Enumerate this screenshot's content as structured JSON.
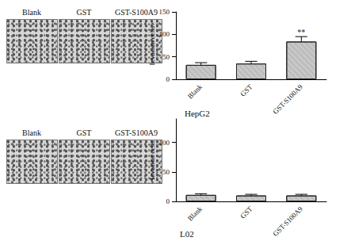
{
  "chart_data": [
    {
      "type": "bar",
      "title": "HepG2",
      "image_labels": [
        "Blank",
        "GST",
        "GST-S100A9"
      ],
      "categories": [
        "Blank",
        "GST",
        "GST-S100A9"
      ],
      "values": [
        32,
        35,
        84
      ],
      "errors": [
        5,
        5,
        11
      ],
      "color": "#c8c8c8",
      "y_label": "Invasion cells",
      "ylim": [
        0,
        150
      ],
      "yticks": [
        0,
        50,
        100,
        150
      ],
      "annotations": [
        {
          "category": "GST-S100A9",
          "text": "**"
        }
      ],
      "grid": false
    },
    {
      "type": "bar",
      "title": "L02",
      "image_labels": [
        "Blank",
        "GST",
        "GST-S100A9"
      ],
      "categories": [
        "Blank",
        "GST",
        "GST-S100A9"
      ],
      "values": [
        11,
        10,
        10
      ],
      "errors": [
        2,
        2,
        2
      ],
      "color": "#c8c8c8",
      "y_label": "Invasion cells",
      "ylim": [
        0,
        140
      ],
      "yticks": [
        0,
        50,
        100
      ],
      "annotations": [],
      "grid": false
    }
  ]
}
